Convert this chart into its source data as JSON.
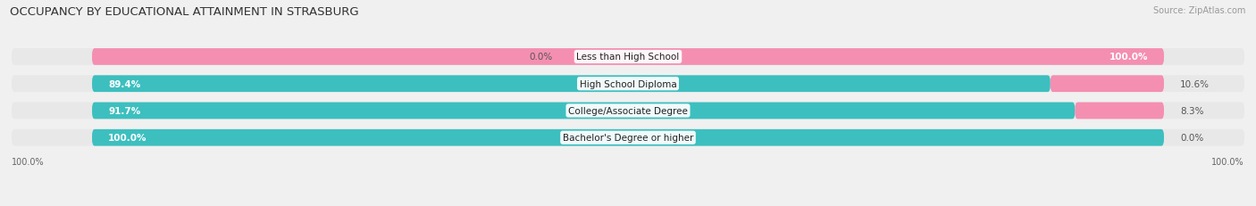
{
  "title": "OCCUPANCY BY EDUCATIONAL ATTAINMENT IN STRASBURG",
  "source": "Source: ZipAtlas.com",
  "categories": [
    "Less than High School",
    "High School Diploma",
    "College/Associate Degree",
    "Bachelor's Degree or higher"
  ],
  "owner_pct": [
    0.0,
    89.4,
    91.7,
    100.0
  ],
  "renter_pct": [
    100.0,
    10.6,
    8.3,
    0.0
  ],
  "owner_color": "#3DBFBF",
  "renter_color": "#F48FB1",
  "bg_color": "#f0f0f0",
  "bar_bg_color": "#e0e0e0",
  "row_bg_color": "#e8e8e8",
  "title_fontsize": 9.5,
  "label_fontsize": 7.5,
  "pct_fontsize": 7.5,
  "tick_fontsize": 7,
  "legend_fontsize": 7.5,
  "source_fontsize": 7
}
